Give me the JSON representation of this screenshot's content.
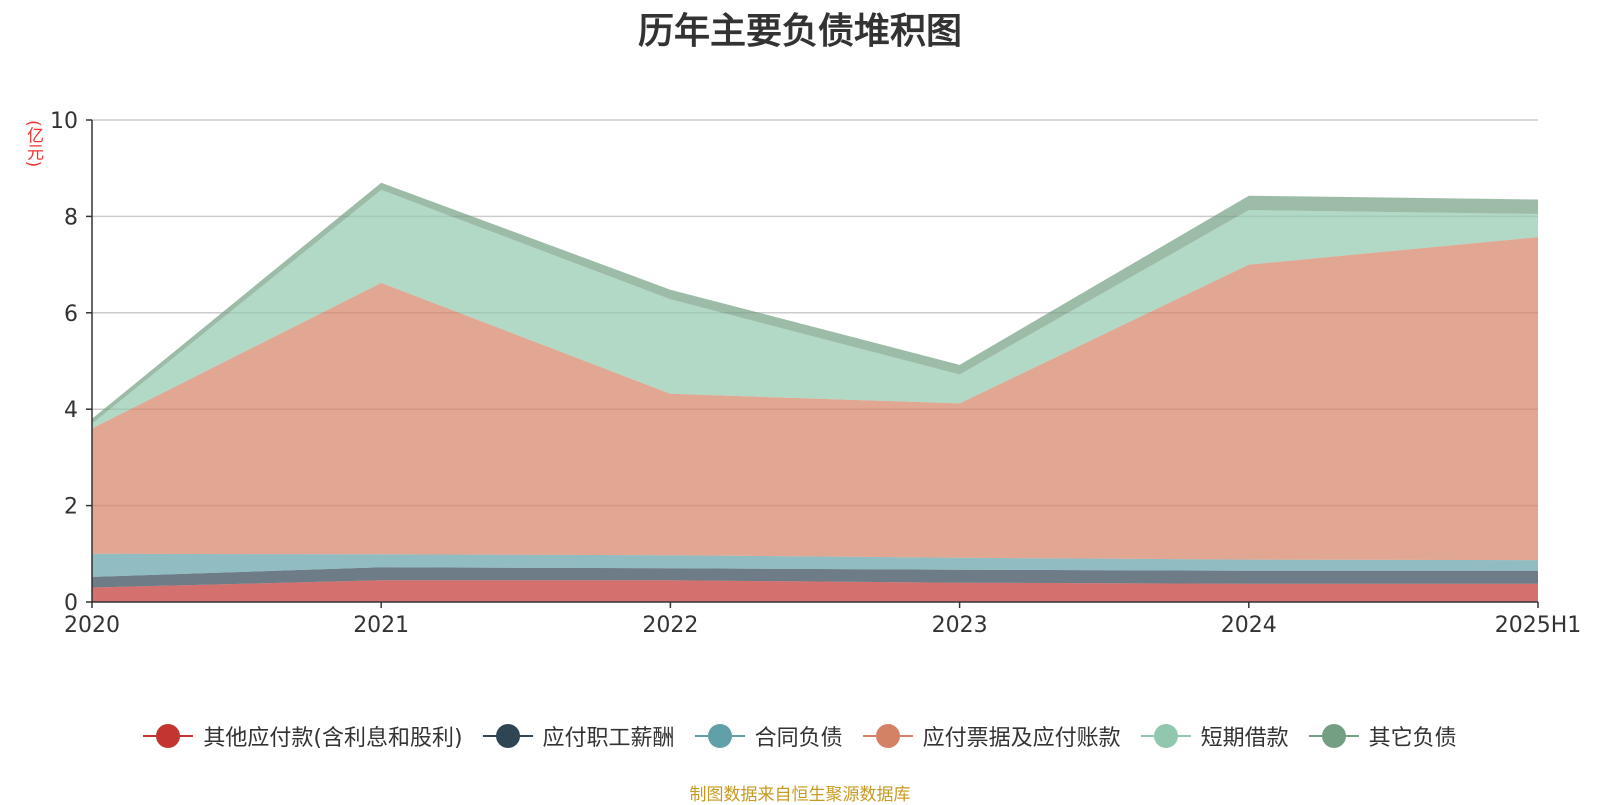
{
  "chart_data": {
    "type": "area",
    "stacked": true,
    "title": "历年主要负债堆积图",
    "unit_label": "(亿元)",
    "source_note": "制图数据来自恒生聚源数据库",
    "x": [
      "2020",
      "2021",
      "2022",
      "2023",
      "2024",
      "2025H1"
    ],
    "ylim": [
      0,
      10
    ],
    "yticks": [
      0,
      2,
      4,
      6,
      8,
      10
    ],
    "grid": true,
    "legend_position": "bottom",
    "series": [
      {
        "name": "其他应付款(含利息和股利)",
        "color": "#c23531",
        "values": [
          0.3,
          0.45,
          0.45,
          0.4,
          0.38,
          0.38
        ]
      },
      {
        "name": "应付职工薪酬",
        "color": "#2f4554",
        "values": [
          0.22,
          0.27,
          0.25,
          0.27,
          0.27,
          0.27
        ]
      },
      {
        "name": "合同负债",
        "color": "#61a0a8",
        "values": [
          0.48,
          0.27,
          0.27,
          0.25,
          0.23,
          0.22
        ]
      },
      {
        "name": "应付票据及应付账款",
        "color": "#d48265",
        "values": [
          2.6,
          5.63,
          3.35,
          3.2,
          6.12,
          6.7
        ]
      },
      {
        "name": "短期借款",
        "color": "#91c7ae",
        "values": [
          0.1,
          1.93,
          1.96,
          0.6,
          1.13,
          0.48
        ]
      },
      {
        "name": "其它负债",
        "color": "#749f83",
        "values": [
          0.1,
          0.15,
          0.2,
          0.2,
          0.3,
          0.3
        ]
      }
    ]
  }
}
